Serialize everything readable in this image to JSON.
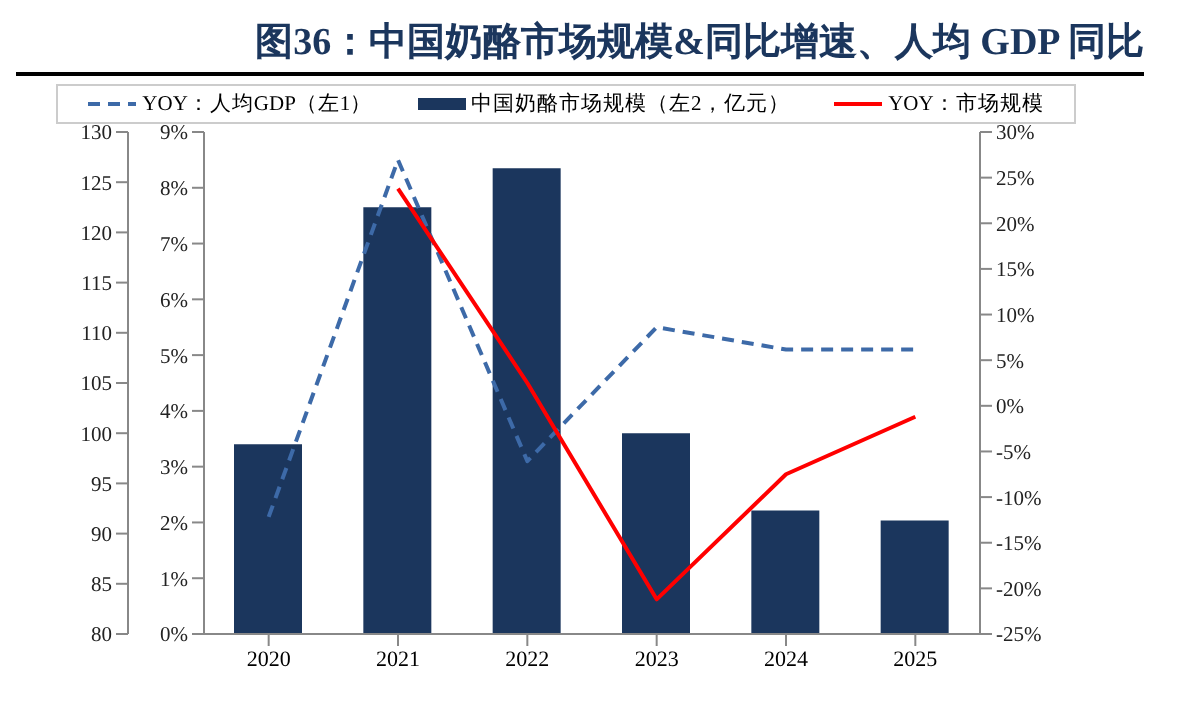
{
  "chart_data": {
    "type": "bar",
    "title": "图36：中国奶酪市场规模&同比增速、人均 GDP 同比",
    "categories": [
      "2020",
      "2021",
      "2022",
      "2023",
      "2024",
      "2025"
    ],
    "series": [
      {
        "name": "YOY：人均GDP（左1）",
        "type": "line",
        "axis": "y",
        "color": "#3d6aa8",
        "line_style": "dashed",
        "values": [
          2.1,
          8.5,
          3.1,
          5.5,
          5.1,
          5.1
        ]
      },
      {
        "name": "中国奶酪市场规模（左2，亿元）",
        "axis": "y2",
        "color": "#1b365d",
        "values": [
          98.9,
          122.5,
          126.4,
          100.0,
          92.3,
          91.3
        ]
      },
      {
        "name": "YOY：市场规模",
        "type": "line",
        "axis": "y3",
        "color": "#ff0000",
        "line_style": "solid",
        "values": [
          null,
          23.8,
          2.5,
          -21.2,
          -7.5,
          -1.2
        ]
      }
    ],
    "ylim": [
      0,
      9
    ],
    "yticks": [
      {
        "value": 0,
        "label": "0%"
      },
      {
        "value": 1,
        "label": "1%"
      },
      {
        "value": 2,
        "label": "2%"
      },
      {
        "value": 3,
        "label": "3%"
      },
      {
        "value": 4,
        "label": "4%"
      },
      {
        "value": 5,
        "label": "5%"
      },
      {
        "value": 6,
        "label": "6%"
      },
      {
        "value": 7,
        "label": "7%"
      },
      {
        "value": 8,
        "label": "8%"
      },
      {
        "value": 9,
        "label": "9%"
      }
    ],
    "y2lim": [
      80,
      130
    ],
    "y2ticks": [
      80,
      85,
      90,
      95,
      100,
      105,
      110,
      115,
      120,
      125,
      130
    ],
    "y3lim": [
      -25,
      30
    ],
    "y3ticks": [
      {
        "value": -25,
        "label": "-25%"
      },
      {
        "value": -20,
        "label": "-20%"
      },
      {
        "value": -15,
        "label": "-15%"
      },
      {
        "value": -10,
        "label": "-10%"
      },
      {
        "value": -5,
        "label": "-5%"
      },
      {
        "value": 0,
        "label": "0%"
      },
      {
        "value": 5,
        "label": "5%"
      },
      {
        "value": 10,
        "label": "10%"
      },
      {
        "value": 15,
        "label": "15%"
      },
      {
        "value": 20,
        "label": "20%"
      },
      {
        "value": 25,
        "label": "25%"
      },
      {
        "value": 30,
        "label": "30%"
      }
    ],
    "grid": false,
    "legend": "top",
    "marker": "none"
  }
}
